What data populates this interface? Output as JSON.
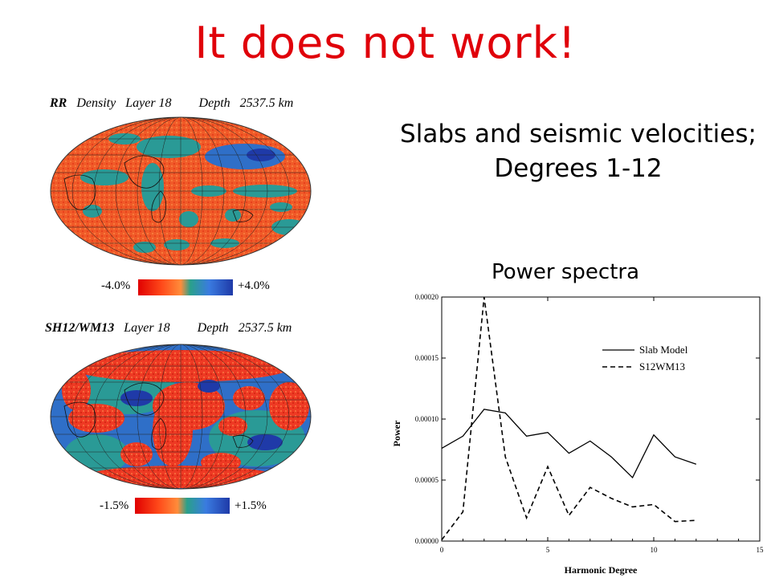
{
  "slide": {
    "title": "It does not work!",
    "subtitle_line1": "Slabs and seismic velocities;",
    "subtitle_line2": "Degrees 1-12",
    "power_label": "Power spectra"
  },
  "maps": [
    {
      "model": "RR",
      "quantity": "Density",
      "layer": "Layer 18",
      "depth_label": "Depth",
      "depth": "2537.5 km",
      "scale_min": "-4.0%",
      "scale_max": "+4.0%"
    },
    {
      "model": "SH12/WM13",
      "layer": "Layer 18",
      "depth_label": "Depth",
      "depth": "2537.5 km",
      "scale_min": "-1.5%",
      "scale_max": "+1.5%"
    }
  ],
  "colors": {
    "title": "#e0000a",
    "map_red": "#f05a28",
    "map_blue": "#2f6fc8",
    "map_teal": "#2a9a96"
  },
  "chart_data": {
    "type": "line",
    "title": "",
    "xlabel": "Harmonic Degree",
    "ylabel": "Power",
    "xlim": [
      0,
      15
    ],
    "ylim": [
      0,
      0.0002
    ],
    "xticks": [
      "0",
      "5",
      "10",
      "15"
    ],
    "yticks": [
      "0.00000",
      "0.00005",
      "0.00010",
      "0.00015",
      "0.00020"
    ],
    "legend_position": "top-right",
    "x": [
      0,
      1,
      2,
      3,
      4,
      5,
      6,
      7,
      8,
      9,
      10,
      11,
      12
    ],
    "series": [
      {
        "name": "Slab Model",
        "style": "solid",
        "values": [
          7.6e-05,
          8.6e-05,
          0.000108,
          0.000105,
          8.6e-05,
          8.9e-05,
          7.2e-05,
          8.2e-05,
          6.9e-05,
          5.2e-05,
          8.7e-05,
          6.9e-05,
          6.3e-05
        ]
      },
      {
        "name": "S12WM13",
        "style": "dashed",
        "values": [
          1e-06,
          2.4e-05,
          0.0002,
          6.9e-05,
          1.9e-05,
          6.1e-05,
          2.1e-05,
          4.4e-05,
          3.5e-05,
          2.8e-05,
          3e-05,
          1.6e-05,
          1.7e-05
        ]
      }
    ]
  }
}
